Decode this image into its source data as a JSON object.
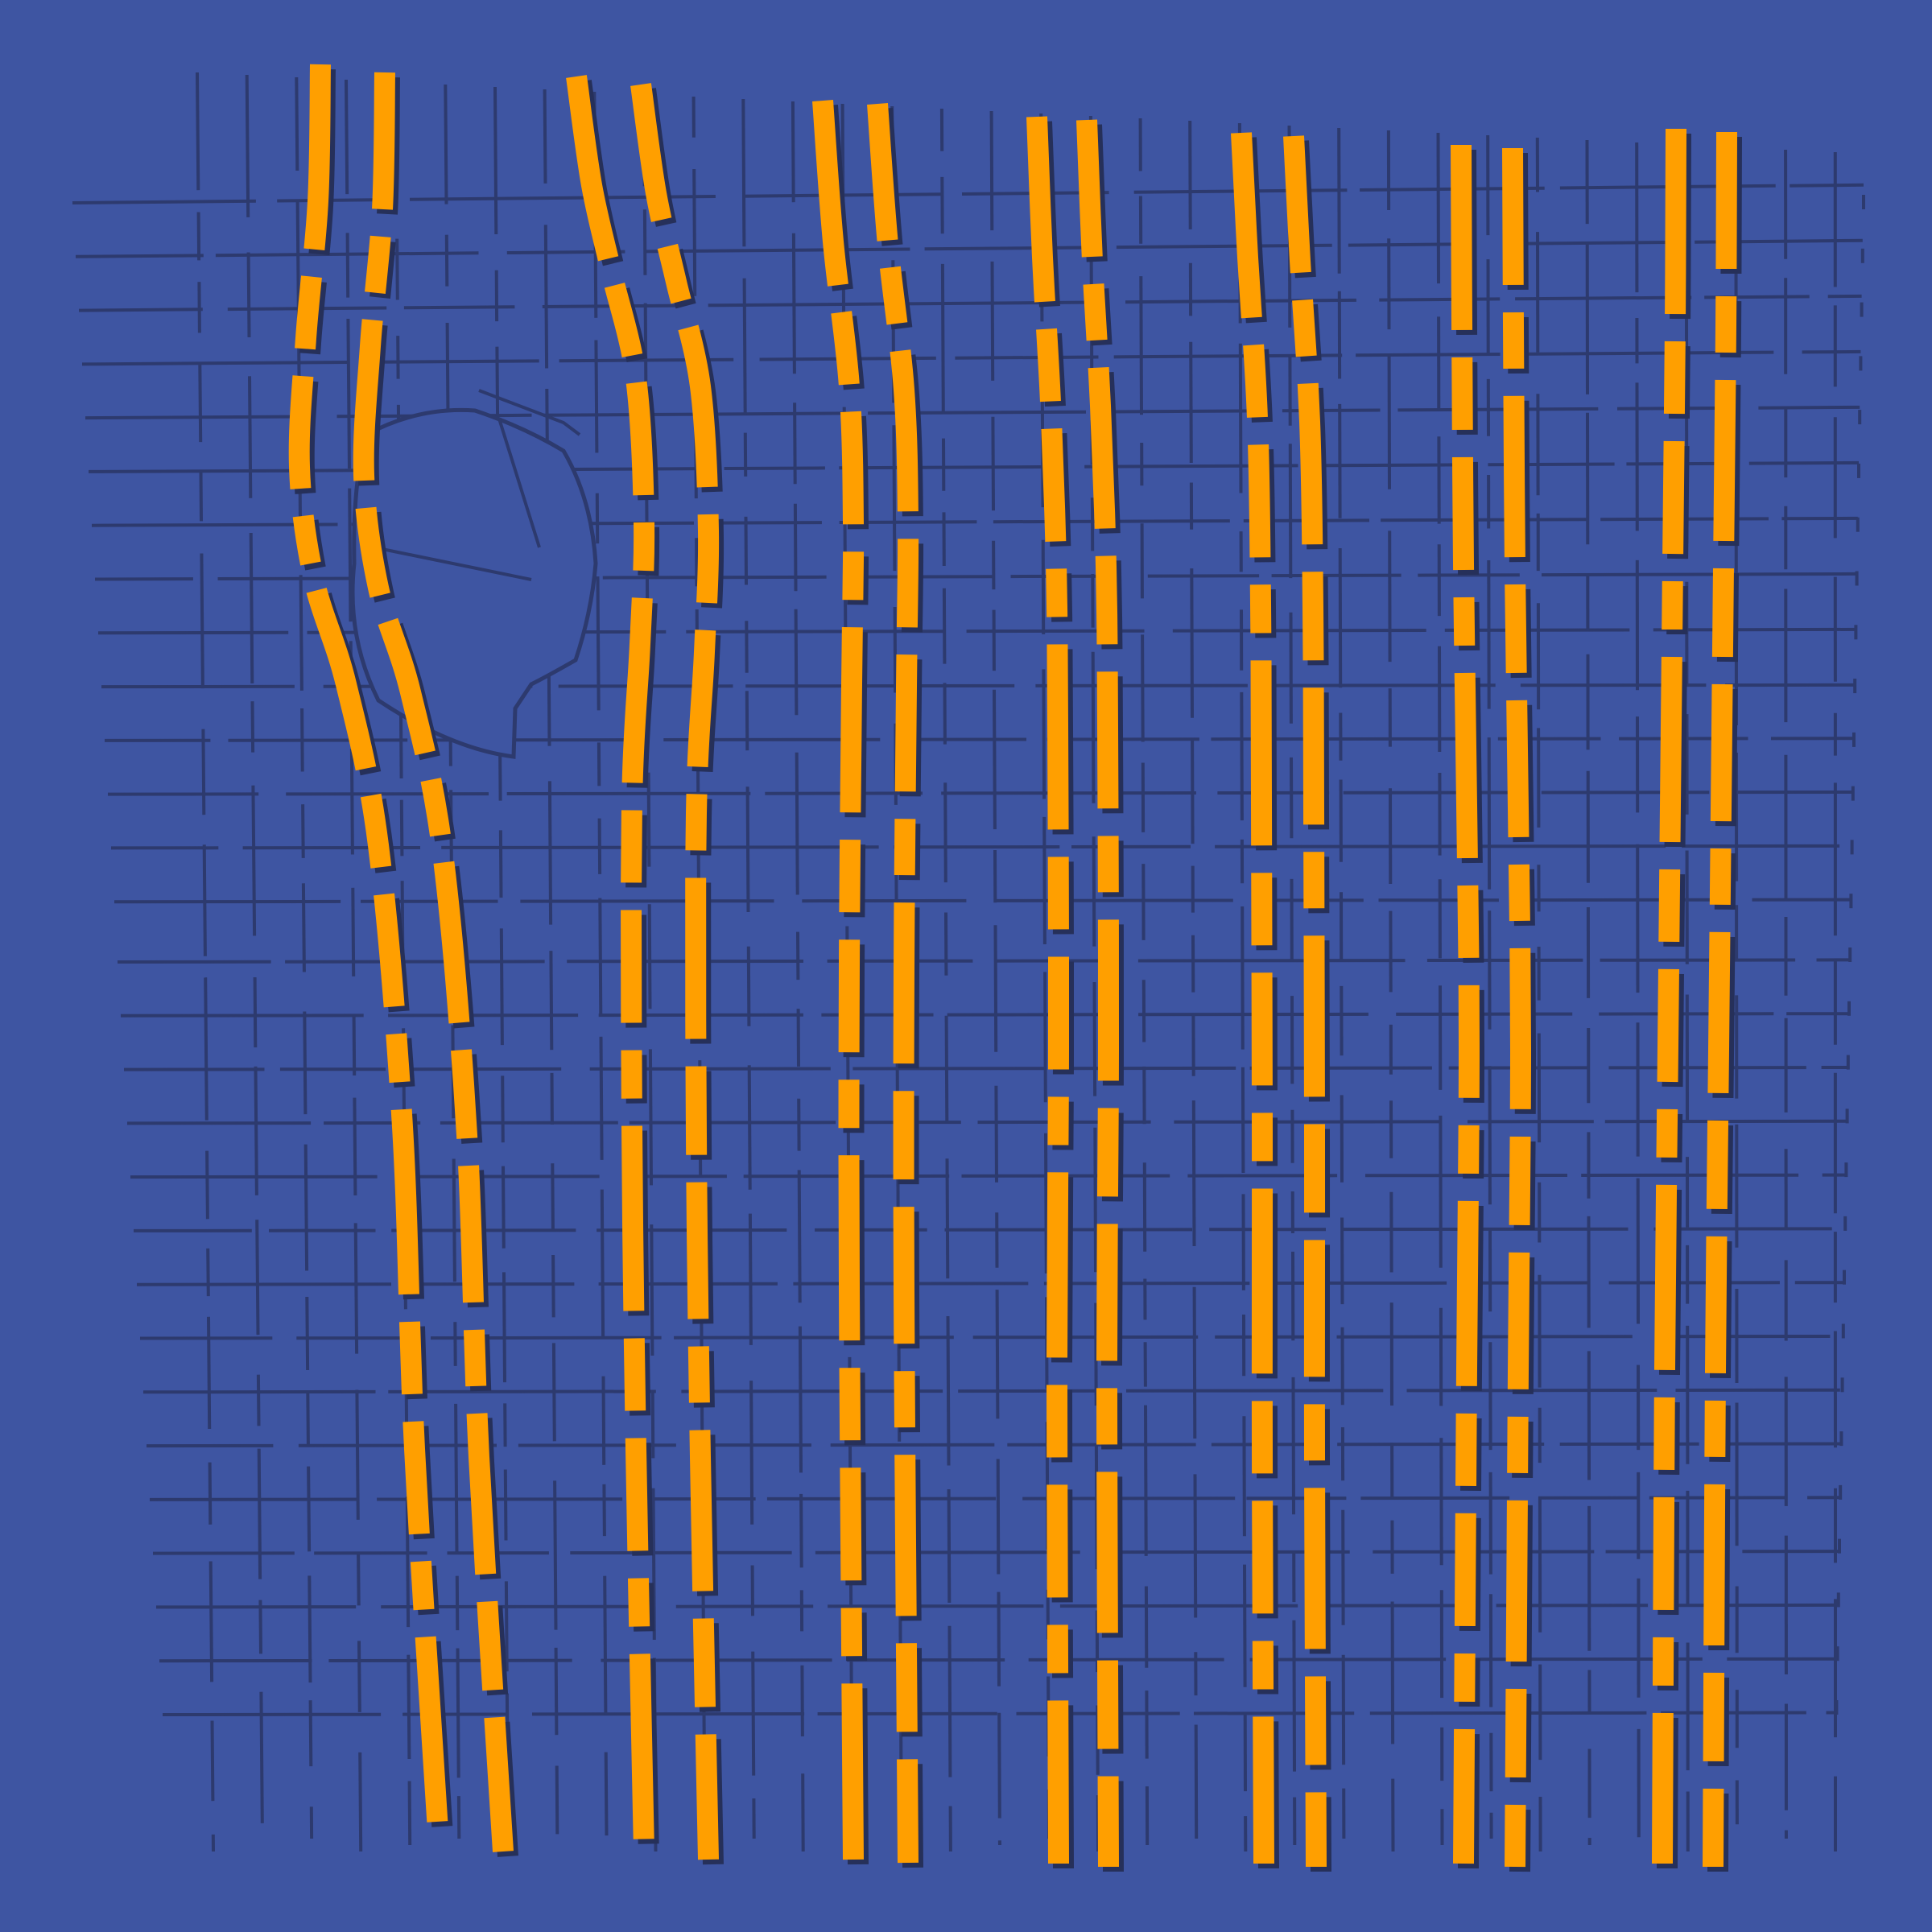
{
  "artwork": {
    "subject": "woven-grid",
    "colors": {
      "background": "#3e55a2",
      "thread_dark": "#2d3a6e",
      "accent_thread": "#ff9f00",
      "accent_shadow": "#26305a"
    },
    "accent_pairs_count": 7,
    "has_hole": true
  }
}
